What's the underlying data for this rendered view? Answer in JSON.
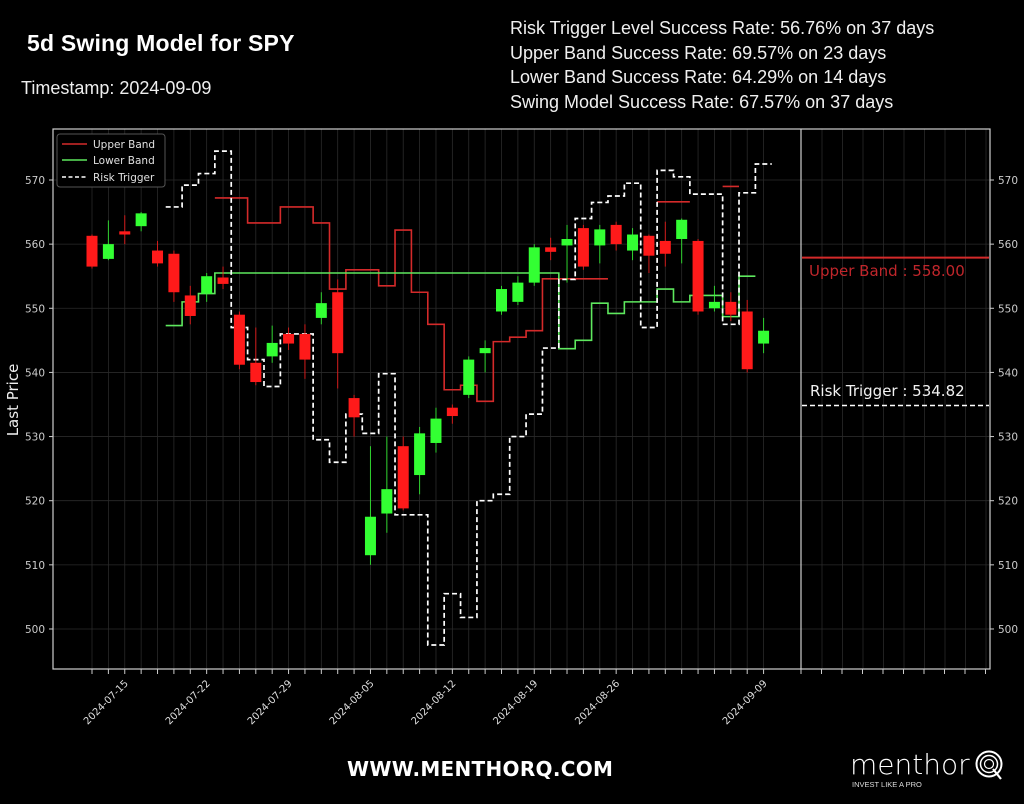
{
  "header": {
    "title": "5d Swing Model for SPY",
    "timestamp": "Timestamp: 2024-09-09"
  },
  "stats": [
    "Risk Trigger Level Success Rate: 56.76% on 37 days",
    "Upper Band Success Rate: 69.57% on 23 days",
    "Lower Band Success Rate: 64.29% on 14 days",
    "Swing Model Success Rate: 67.57% on 37 days"
  ],
  "colors": {
    "background": "#000000",
    "up_candle": "#33ff33",
    "down_candle": "#ff1a1a",
    "upper_band": "#d42a2a",
    "lower_band": "#5ee85e",
    "risk_trigger": "#ffffff",
    "axis": "#cccccc",
    "grid": "#2a2a2a"
  },
  "annotations": {
    "upper_band_label": "Upper Band : 558.00",
    "risk_trigger_label": "Risk Trigger : 534.82"
  },
  "footer": {
    "url": "WWW.MENTHORQ.COM",
    "logo_word": "menthor",
    "logo_tagline": "INVEST LIKE A PRO"
  },
  "chart_data": {
    "type": "candlestick",
    "title": "5d Swing Model for SPY",
    "xlabel": "",
    "ylabel": "Last Price",
    "ylim": [
      494,
      578
    ],
    "yticks": [
      500,
      510,
      520,
      530,
      540,
      550,
      560,
      570
    ],
    "xtick_labels": [
      "2024-07-15",
      "2024-07-22",
      "2024-07-29",
      "2024-08-05",
      "2024-08-12",
      "2024-08-19",
      "2024-08-26",
      "2024-09-09"
    ],
    "grid": true,
    "legend": {
      "position": "upper left",
      "entries": [
        "Upper Band",
        "Lower Band",
        "Risk Trigger"
      ]
    },
    "candles": [
      {
        "date": "2024-07-11",
        "open": 561.3,
        "close": 556.5,
        "high": 561.5,
        "low": 556.2
      },
      {
        "date": "2024-07-12",
        "open": 557.7,
        "close": 560.0,
        "high": 563.7,
        "low": 557.5
      },
      {
        "date": "2024-07-15",
        "open": 562.0,
        "close": 561.5,
        "high": 564.5,
        "low": 560.0
      },
      {
        "date": "2024-07-16",
        "open": 562.8,
        "close": 564.8,
        "high": 565.0,
        "low": 562.0
      },
      {
        "date": "2024-07-17",
        "open": 559.0,
        "close": 557.0,
        "high": 560.5,
        "low": 556.5
      },
      {
        "date": "2024-07-18",
        "open": 558.5,
        "close": 552.5,
        "high": 559.0,
        "low": 551.0
      },
      {
        "date": "2024-07-19",
        "open": 552.0,
        "close": 548.8,
        "high": 553.5,
        "low": 547.5
      },
      {
        "date": "2024-07-22",
        "open": 552.3,
        "close": 555.0,
        "high": 555.5,
        "low": 551.0
      },
      {
        "date": "2024-07-23",
        "open": 554.8,
        "close": 553.8,
        "high": 556.5,
        "low": 553.0
      },
      {
        "date": "2024-07-24",
        "open": 549.0,
        "close": 541.2,
        "high": 549.5,
        "low": 540.5
      },
      {
        "date": "2024-07-25",
        "open": 541.5,
        "close": 538.5,
        "high": 547.0,
        "low": 538.0
      },
      {
        "date": "2024-07-26",
        "open": 542.5,
        "close": 544.6,
        "high": 547.3,
        "low": 541.5
      },
      {
        "date": "2024-07-29",
        "open": 546.0,
        "close": 544.5,
        "high": 547.0,
        "low": 543.5
      },
      {
        "date": "2024-07-30",
        "open": 546.0,
        "close": 542.0,
        "high": 547.5,
        "low": 539.0
      },
      {
        "date": "2024-07-31",
        "open": 548.5,
        "close": 550.8,
        "high": 552.5,
        "low": 547.5
      },
      {
        "date": "2024-08-01",
        "open": 552.5,
        "close": 543.0,
        "high": 554.5,
        "low": 537.5
      },
      {
        "date": "2024-08-02",
        "open": 536.0,
        "close": 533.0,
        "high": 536.5,
        "low": 530.0
      },
      {
        "date": "2024-08-05",
        "open": 511.5,
        "close": 517.5,
        "high": 528.5,
        "low": 510.0
      },
      {
        "date": "2024-08-06",
        "open": 518.0,
        "close": 521.8,
        "high": 530.0,
        "low": 515.0
      },
      {
        "date": "2024-08-07",
        "open": 528.5,
        "close": 518.8,
        "high": 530.0,
        "low": 518.5
      },
      {
        "date": "2024-08-08",
        "open": 524.0,
        "close": 530.5,
        "high": 531.5,
        "low": 521.0
      },
      {
        "date": "2024-08-09",
        "open": 529.0,
        "close": 532.8,
        "high": 534.5,
        "low": 527.5
      },
      {
        "date": "2024-08-12",
        "open": 534.5,
        "close": 533.2,
        "high": 535.0,
        "low": 532.0
      },
      {
        "date": "2024-08-13",
        "open": 536.5,
        "close": 542.0,
        "high": 542.5,
        "low": 536.0
      },
      {
        "date": "2024-08-14",
        "open": 543.0,
        "close": 543.8,
        "high": 545.0,
        "low": 540.0
      },
      {
        "date": "2024-08-15",
        "open": 549.5,
        "close": 553.0,
        "high": 553.5,
        "low": 549.0
      },
      {
        "date": "2024-08-16",
        "open": 551.0,
        "close": 554.0,
        "high": 555.0,
        "low": 550.5
      },
      {
        "date": "2024-08-19",
        "open": 554.0,
        "close": 559.5,
        "high": 560.0,
        "low": 553.5
      },
      {
        "date": "2024-08-20",
        "open": 559.5,
        "close": 558.8,
        "high": 561.0,
        "low": 557.5
      },
      {
        "date": "2024-08-21",
        "open": 559.8,
        "close": 560.8,
        "high": 563.0,
        "low": 554.0
      },
      {
        "date": "2024-08-22",
        "open": 562.5,
        "close": 556.5,
        "high": 563.0,
        "low": 556.0
      },
      {
        "date": "2024-08-23",
        "open": 559.8,
        "close": 562.3,
        "high": 563.0,
        "low": 557.0
      },
      {
        "date": "2024-08-26",
        "open": 563.0,
        "close": 560.0,
        "high": 563.5,
        "low": 559.0
      },
      {
        "date": "2024-08-27",
        "open": 559.0,
        "close": 561.5,
        "high": 562.5,
        "low": 557.5
      },
      {
        "date": "2024-08-28",
        "open": 561.3,
        "close": 558.2,
        "high": 561.5,
        "low": 555.5
      },
      {
        "date": "2024-08-29",
        "open": 560.5,
        "close": 558.5,
        "high": 563.5,
        "low": 556.5
      },
      {
        "date": "2024-08-30",
        "open": 560.8,
        "close": 563.8,
        "high": 564.0,
        "low": 557.0
      },
      {
        "date": "2024-09-03",
        "open": 560.5,
        "close": 549.5,
        "high": 560.8,
        "low": 549.0
      },
      {
        "date": "2024-09-04",
        "open": 550.0,
        "close": 551.0,
        "high": 553.5,
        "low": 549.5
      },
      {
        "date": "2024-09-05",
        "open": 551.0,
        "close": 549.0,
        "high": 552.5,
        "low": 548.0
      },
      {
        "date": "2024-09-06",
        "open": 549.5,
        "close": 540.5,
        "high": 551.3,
        "low": 540.0
      },
      {
        "date": "2024-09-09",
        "open": 544.5,
        "close": 546.5,
        "high": 548.5,
        "low": 543.0
      }
    ],
    "series": [
      {
        "name": "Upper Band",
        "type": "step",
        "points": [
          [
            0.0,
            null
          ]
        ]
      },
      {
        "name": "Lower Band",
        "type": "step",
        "points": [
          [
            0.0,
            null
          ]
        ]
      },
      {
        "name": "Risk Trigger",
        "type": "step-dashed",
        "points": [
          [
            0.0,
            null
          ]
        ]
      }
    ],
    "step_series": {
      "upper_band": [
        [
          "2024-07-23",
          567.2
        ],
        [
          "2024-07-25",
          563.3
        ],
        [
          "2024-07-29",
          565.8
        ],
        [
          "2024-07-31",
          563.3
        ],
        [
          "2024-08-01",
          553.0
        ],
        [
          "2024-08-02",
          556.0
        ],
        [
          "2024-08-05",
          556.0
        ],
        [
          "2024-08-06",
          553.5
        ],
        [
          "2024-08-07",
          562.2
        ],
        [
          "2024-08-08",
          552.5
        ],
        [
          "2024-08-09",
          547.5
        ],
        [
          "2024-08-12",
          537.3
        ],
        [
          "2024-08-13",
          538.0
        ],
        [
          "2024-08-14",
          535.5
        ],
        [
          "2024-08-15",
          544.8
        ],
        [
          "2024-08-16",
          545.5
        ],
        [
          "2024-08-19",
          546.5
        ],
        [
          "2024-08-20",
          554.6
        ],
        [
          "2024-08-26",
          null
        ],
        [
          "2024-08-29",
          566.6
        ],
        [
          "2024-09-03",
          null
        ],
        [
          "2024-09-05",
          569.0
        ]
      ],
      "lower_band": [
        [
          "2024-07-18",
          547.3
        ],
        [
          "2024-07-19",
          551.0
        ],
        [
          "2024-07-22",
          552.3
        ],
        [
          "2024-07-23",
          555.5
        ],
        [
          "2024-08-21",
          543.7
        ],
        [
          "2024-08-22",
          545.0
        ],
        [
          "2024-08-23",
          550.8
        ],
        [
          "2024-08-26",
          549.2
        ],
        [
          "2024-08-27",
          551.0
        ],
        [
          "2024-08-29",
          553.0
        ],
        [
          "2024-08-30",
          551.0
        ],
        [
          "2024-09-03",
          552.0
        ],
        [
          "2024-09-05",
          548.7
        ],
        [
          "2024-09-06",
          555.0
        ]
      ],
      "risk_trigger": [
        [
          "2024-07-18",
          565.8
        ],
        [
          "2024-07-19",
          569.2
        ],
        [
          "2024-07-22",
          571.0
        ],
        [
          "2024-07-23",
          574.5
        ],
        [
          "2024-07-24",
          547.0
        ],
        [
          "2024-07-25",
          542.0
        ],
        [
          "2024-07-26",
          537.8
        ],
        [
          "2024-07-29",
          546.0
        ],
        [
          "2024-07-31",
          529.5
        ],
        [
          "2024-08-01",
          526.0
        ],
        [
          "2024-08-02",
          533.5
        ],
        [
          "2024-08-05",
          530.5
        ],
        [
          "2024-08-06",
          539.8
        ],
        [
          "2024-08-07",
          517.8
        ],
        [
          "2024-08-09",
          497.5
        ],
        [
          "2024-08-12",
          505.5
        ],
        [
          "2024-08-13",
          501.8
        ],
        [
          "2024-08-14",
          520.0
        ],
        [
          "2024-08-15",
          521.0
        ],
        [
          "2024-08-16",
          530.0
        ],
        [
          "2024-08-19",
          533.5
        ],
        [
          "2024-08-20",
          543.8
        ],
        [
          "2024-08-21",
          554.5
        ],
        [
          "2024-08-22",
          564.0
        ],
        [
          "2024-08-23",
          566.5
        ],
        [
          "2024-08-26",
          567.5
        ],
        [
          "2024-08-27",
          569.5
        ],
        [
          "2024-08-28",
          547.0
        ],
        [
          "2024-08-29",
          571.5
        ],
        [
          "2024-08-30",
          570.5
        ],
        [
          "2024-09-03",
          567.8
        ],
        [
          "2024-09-05",
          547.5
        ],
        [
          "2024-09-06",
          568.0
        ],
        [
          "2024-09-09",
          572.5
        ]
      ]
    },
    "final_levels": {
      "upper_band": 558.0,
      "risk_trigger": 534.82
    }
  }
}
